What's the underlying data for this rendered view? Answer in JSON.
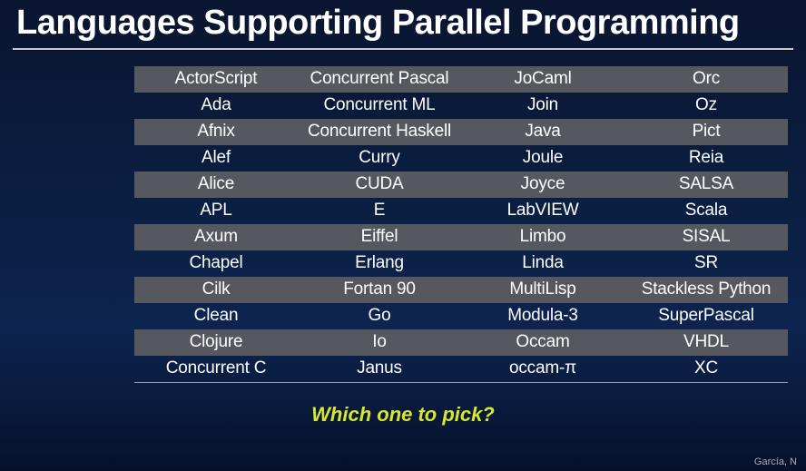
{
  "slide": {
    "title": "Languages Supporting Parallel Programming",
    "footer_question": "Which one to pick?",
    "credit": "García, N",
    "background_gradient_top": "#0a1530",
    "background_gradient_bottom": "#05112a",
    "accent_color": "#d6e634",
    "rule_color": "#c8c8d0"
  },
  "table": {
    "columns": 4,
    "band_color": "#55585f",
    "text_color": "#ffffff",
    "font_size": 19,
    "rows": [
      {
        "band": true,
        "cells": [
          "ActorScript",
          "Concurrent Pascal",
          "JoCaml",
          "Orc"
        ]
      },
      {
        "band": false,
        "cells": [
          "Ada",
          "Concurrent ML",
          "Join",
          "Oz"
        ]
      },
      {
        "band": true,
        "cells": [
          "Afnix",
          "Concurrent Haskell",
          "Java",
          "Pict"
        ]
      },
      {
        "band": false,
        "cells": [
          "Alef",
          "Curry",
          "Joule",
          "Reia"
        ]
      },
      {
        "band": true,
        "cells": [
          "Alice",
          "CUDA",
          "Joyce",
          "SALSA"
        ]
      },
      {
        "band": false,
        "cells": [
          "APL",
          "E",
          "LabVIEW",
          "Scala"
        ]
      },
      {
        "band": true,
        "cells": [
          "Axum",
          "Eiffel",
          "Limbo",
          "SISAL"
        ]
      },
      {
        "band": false,
        "cells": [
          "Chapel",
          "Erlang",
          "Linda",
          "SR"
        ]
      },
      {
        "band": true,
        "cells": [
          "Cilk",
          "Fortan 90",
          "MultiLisp",
          "Stackless Python"
        ]
      },
      {
        "band": false,
        "cells": [
          "Clean",
          "Go",
          "Modula-3",
          "SuperPascal"
        ]
      },
      {
        "band": true,
        "cells": [
          "Clojure",
          "Io",
          "Occam",
          "VHDL"
        ]
      },
      {
        "band": false,
        "cells": [
          "Concurrent C",
          "Janus",
          "occam-π",
          "XC"
        ]
      }
    ]
  }
}
